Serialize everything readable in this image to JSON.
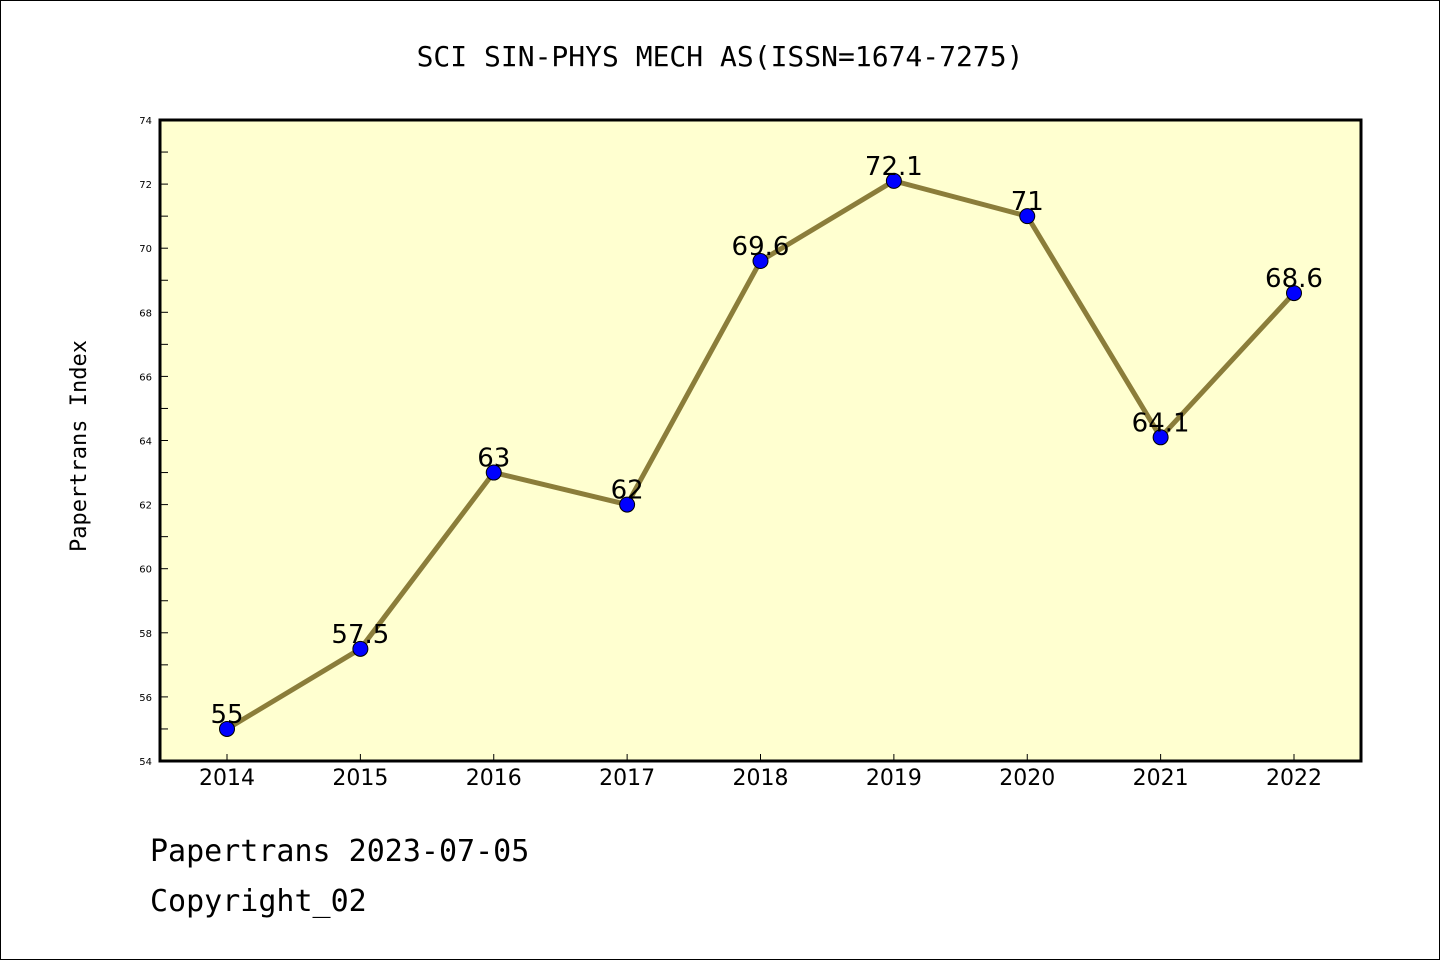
{
  "chart_data": {
    "type": "line",
    "title": "SCI SIN-PHYS MECH AS(ISSN=1674-7275)",
    "xlabel": "",
    "ylabel": "Papertrans Index",
    "categories": [
      "2014",
      "2015",
      "2016",
      "2017",
      "2018",
      "2019",
      "2020",
      "2021",
      "2022"
    ],
    "series": [
      {
        "values": [
          55,
          57.5,
          63,
          62,
          69.6,
          72.1,
          71,
          64.1,
          68.6
        ],
        "data_labels": [
          "55",
          "57.5",
          "63",
          "62",
          "69.6",
          "72.1",
          "71",
          "64.1",
          "68.6"
        ]
      }
    ],
    "ylim": [
      54,
      74
    ],
    "yticks": [
      "54",
      "56",
      "58",
      "60",
      "62",
      "64",
      "66",
      "68",
      "70",
      "72",
      "74"
    ],
    "grid": false,
    "legend": "none",
    "colors": {
      "plot_background": "#ffffd0",
      "line": "#8b7d3a",
      "marker": "#0000ff"
    }
  },
  "footer": {
    "line1": "Papertrans 2023-07-05",
    "line2": "Copyright_02"
  }
}
